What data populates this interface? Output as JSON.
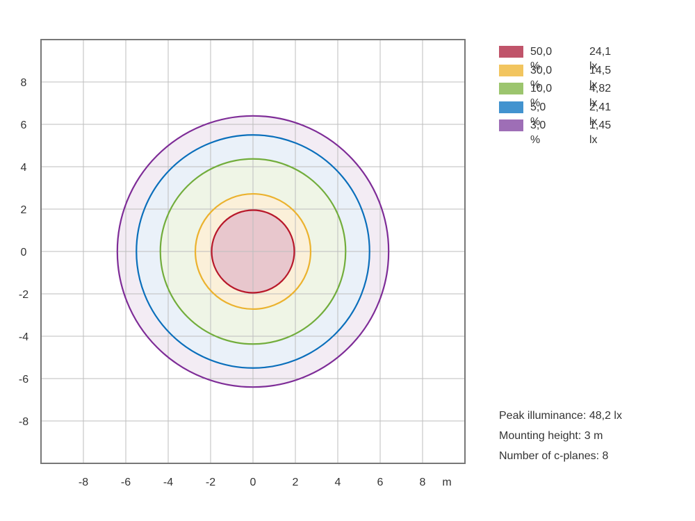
{
  "chart_data": {
    "type": "isolux_contour",
    "x_unit": "m",
    "xlim": [
      -10,
      10
    ],
    "ylim": [
      -10,
      10
    ],
    "x_ticks": [
      -8,
      -6,
      -4,
      -2,
      0,
      2,
      4,
      6,
      8
    ],
    "y_ticks": [
      8,
      6,
      4,
      2,
      0,
      -2,
      -4,
      -6,
      -8
    ],
    "grid": true,
    "legend_position": "top-right",
    "series": [
      {
        "percent": "50,0 %",
        "lux": "24,1 lx",
        "radius": 1.95,
        "color": "#b8182a",
        "fill": "#e8c7cd",
        "swatch": "#c0546a"
      },
      {
        "percent": "30,0 %",
        "lux": "14,5 lx",
        "radius": 2.72,
        "color": "#ebb22e",
        "fill": "#fbf0d9",
        "swatch": "#f2c55f"
      },
      {
        "percent": "10,0 %",
        "lux": "4,82 lx",
        "radius": 4.37,
        "color": "#72ad3c",
        "fill": "#eff5e6",
        "swatch": "#9cc56e"
      },
      {
        "percent": "5,0 %",
        "lux": "2,41 lx",
        "radius": 5.5,
        "color": "#0a6fbb",
        "fill": "#eaf1f9",
        "swatch": "#4293cf"
      },
      {
        "percent": "3,0 %",
        "lux": "1,45 lx",
        "radius": 6.4,
        "color": "#7e2c97",
        "fill": "#f3ecf4",
        "swatch": "#9e6eb6"
      }
    ]
  },
  "info": {
    "peak": "Peak illuminance: 48,2 lx",
    "height": "Mounting height: 3 m",
    "cplanes": "Number of c-planes: 8"
  }
}
